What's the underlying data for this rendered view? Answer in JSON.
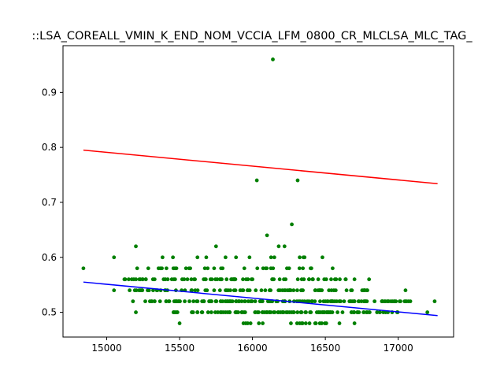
{
  "chart_data": {
    "type": "scatter",
    "title": "::LSA_COREALL_VMIN_K_END_NOM_VCCIA_LFM_0800_CR_MLCLSA_MLC_TAG_",
    "xlabel": "",
    "ylabel": "",
    "xlim": [
      14700,
      17380
    ],
    "ylim": [
      0.455,
      0.985
    ],
    "x_ticks": [
      15000,
      15500,
      16000,
      16500,
      17000
    ],
    "y_ticks": [
      0.5,
      0.6,
      0.7,
      0.8,
      0.9
    ],
    "grid": false,
    "legend": "none",
    "colors": {
      "points": "#008000",
      "upper_line": "#ff0000",
      "fit_line": "#0000ff"
    },
    "lines": [
      {
        "color": "#ff0000",
        "x": [
          14840,
          17270
        ],
        "y": [
          0.795,
          0.734
        ]
      },
      {
        "color": "#0000ff",
        "x": [
          14840,
          17270
        ],
        "y": [
          0.555,
          0.494
        ]
      }
    ],
    "outliers": [
      {
        "x": 16140,
        "y": 0.96
      },
      {
        "x": 16030,
        "y": 0.74
      },
      {
        "x": 16310,
        "y": 0.74
      },
      {
        "x": 16270,
        "y": 0.66
      },
      {
        "x": 16100,
        "y": 0.64
      },
      {
        "x": 15200,
        "y": 0.62
      },
      {
        "x": 15750,
        "y": 0.62
      },
      {
        "x": 16180,
        "y": 0.62
      },
      {
        "x": 16220,
        "y": 0.62
      },
      {
        "x": 14840,
        "y": 0.58
      },
      {
        "x": 17250,
        "y": 0.52
      },
      {
        "x": 17200,
        "y": 0.5
      },
      {
        "x": 15050,
        "y": 0.6
      },
      {
        "x": 15050,
        "y": 0.54
      },
      {
        "x": 15180,
        "y": 0.52
      },
      {
        "x": 15200,
        "y": 0.5
      },
      {
        "x": 15500,
        "y": 0.48
      },
      {
        "x": 16700,
        "y": 0.48
      },
      {
        "x": 16800,
        "y": 0.56
      },
      {
        "x": 16700,
        "y": 0.56
      },
      {
        "x": 16550,
        "y": 0.58
      },
      {
        "x": 16480,
        "y": 0.6
      },
      {
        "x": 16350,
        "y": 0.6
      },
      {
        "x": 17050,
        "y": 0.54
      },
      {
        "x": 16950,
        "y": 0.52
      }
    ],
    "bands": [
      {
        "y": 0.48,
        "x_range": [
          15800,
          16600
        ],
        "density": 0.3
      },
      {
        "y": 0.5,
        "x_range": [
          15450,
          17000
        ],
        "density": 0.9
      },
      {
        "y": 0.52,
        "x_range": [
          15250,
          17100
        ],
        "density": 0.95
      },
      {
        "y": 0.54,
        "x_range": [
          15150,
          16800
        ],
        "density": 0.6
      },
      {
        "y": 0.56,
        "x_range": [
          15100,
          16700
        ],
        "density": 0.55
      },
      {
        "y": 0.58,
        "x_range": [
          15200,
          16450
        ],
        "density": 0.3
      },
      {
        "y": 0.6,
        "x_range": [
          15350,
          16400
        ],
        "density": 0.12
      }
    ]
  }
}
